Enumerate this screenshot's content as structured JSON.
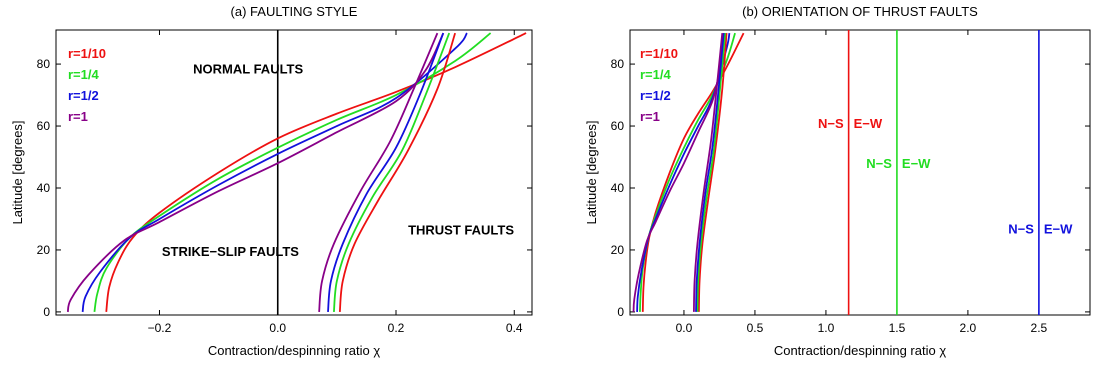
{
  "chart_data": [
    {
      "type": "line",
      "title": "(a) FAULTING STYLE",
      "xlabel": "Contraction/despinning ratio χ",
      "ylabel": "Latitude [degrees]",
      "xlim": [
        -0.375,
        0.43
      ],
      "ylim": [
        -1,
        91
      ],
      "xticks": [
        -0.2,
        0.0,
        0.2,
        0.4
      ],
      "xtick_labels": [
        "−0.2",
        "0.0",
        "0.2",
        "0.4"
      ],
      "yticks": [
        0,
        20,
        40,
        60,
        80
      ],
      "ytick_labels": [
        "0",
        "20",
        "40",
        "60",
        "80"
      ],
      "legend_position": "top-left",
      "legend": [
        {
          "label": "r=1/10",
          "color": "#ee1111"
        },
        {
          "label": "r=1/4",
          "color": "#22dd22"
        },
        {
          "label": "r=1/2",
          "color": "#1111dd"
        },
        {
          "label": "r=1",
          "color": "#880088"
        }
      ],
      "annotations": [
        {
          "text": "NORMAL FAULTS",
          "x": -0.05,
          "y": 77
        },
        {
          "text": "STRIKE−SLIP FAULTS",
          "x": -0.08,
          "y": 18
        },
        {
          "text": "THRUST FAULTS",
          "x": 0.31,
          "y": 25
        }
      ],
      "vertical_lines": [
        {
          "x": 0.0,
          "color": "#000000"
        }
      ],
      "series": [
        {
          "color": "#ee1111",
          "kind": "normal",
          "x": [
            -0.29,
            -0.285,
            -0.27,
            -0.245,
            -0.2,
            -0.1,
            0.0,
            0.1,
            0.2,
            0.3,
            0.42
          ],
          "y": [
            0,
            8,
            16,
            24,
            32,
            45,
            56,
            64,
            71,
            79,
            90
          ]
        },
        {
          "color": "#22dd22",
          "kind": "normal",
          "x": [
            -0.31,
            -0.305,
            -0.29,
            -0.25,
            -0.2,
            -0.1,
            0.0,
            0.1,
            0.2,
            0.3,
            0.36
          ],
          "y": [
            0,
            6,
            14,
            24,
            31,
            43,
            53,
            62,
            70,
            81,
            90
          ]
        },
        {
          "color": "#1111dd",
          "kind": "normal",
          "x": [
            -0.33,
            -0.325,
            -0.3,
            -0.25,
            -0.2,
            -0.1,
            0.0,
            0.1,
            0.2,
            0.3,
            0.32
          ],
          "y": [
            0,
            5,
            13,
            24,
            30,
            41,
            51,
            60,
            69,
            85,
            90
          ]
        },
        {
          "color": "#880088",
          "kind": "normal",
          "x": [
            -0.355,
            -0.35,
            -0.32,
            -0.26,
            -0.2,
            -0.1,
            0.0,
            0.1,
            0.2,
            0.25,
            0.28
          ],
          "y": [
            0,
            4,
            12,
            23,
            29,
            39,
            48,
            58,
            68,
            78,
            90
          ]
        },
        {
          "color": "#ee1111",
          "kind": "thrust",
          "x": [
            0.105,
            0.11,
            0.13,
            0.17,
            0.22,
            0.27,
            0.3
          ],
          "y": [
            0,
            10,
            22,
            36,
            52,
            72,
            90
          ]
        },
        {
          "color": "#22dd22",
          "kind": "thrust",
          "x": [
            0.095,
            0.1,
            0.12,
            0.16,
            0.21,
            0.25,
            0.29
          ],
          "y": [
            0,
            10,
            22,
            37,
            52,
            70,
            90
          ]
        },
        {
          "color": "#1111dd",
          "kind": "thrust",
          "x": [
            0.085,
            0.09,
            0.11,
            0.15,
            0.2,
            0.24,
            0.28
          ],
          "y": [
            0,
            10,
            22,
            38,
            53,
            70,
            90
          ]
        },
        {
          "color": "#880088",
          "kind": "thrust",
          "x": [
            0.07,
            0.075,
            0.095,
            0.14,
            0.19,
            0.23,
            0.27
          ],
          "y": [
            0,
            10,
            22,
            39,
            55,
            72,
            90
          ]
        }
      ]
    },
    {
      "type": "line",
      "title": "(b) ORIENTATION OF THRUST FAULTS",
      "xlabel": "Contraction/despinning ratio χ",
      "ylabel": "Latitude [degrees]",
      "xlim": [
        -0.38,
        2.86
      ],
      "ylim": [
        -1,
        91
      ],
      "xticks": [
        0.0,
        0.5,
        1.0,
        1.5,
        2.0,
        2.5
      ],
      "xtick_labels": [
        "0.0",
        "0.5",
        "1.0",
        "1.5",
        "2.0",
        "2.5"
      ],
      "yticks": [
        0,
        20,
        40,
        60,
        80
      ],
      "ytick_labels": [
        "0",
        "20",
        "40",
        "60",
        "80"
      ],
      "legend_position": "top-left",
      "legend": [
        {
          "label": "r=1/10",
          "color": "#ee1111"
        },
        {
          "label": "r=1/4",
          "color": "#22dd22"
        },
        {
          "label": "r=1/2",
          "color": "#1111dd"
        },
        {
          "label": "r=1",
          "color": "#880088"
        }
      ],
      "vertical_lines": [
        {
          "x": 1.16,
          "color": "#ee1111",
          "left_label": "N−S",
          "right_label": "E−W",
          "label_y": 61
        },
        {
          "x": 1.5,
          "color": "#22dd22",
          "left_label": "N−S",
          "right_label": "E−W",
          "label_y": 48
        },
        {
          "x": 2.5,
          "color": "#1111dd",
          "left_label": "N−S",
          "right_label": "E−W",
          "label_y": 27
        }
      ],
      "series": [
        {
          "color": "#ee1111",
          "kind": "normal",
          "x": [
            -0.29,
            -0.285,
            -0.27,
            -0.245,
            -0.2,
            -0.1,
            0.0,
            0.1,
            0.2,
            0.3,
            0.42
          ],
          "y": [
            0,
            8,
            16,
            24,
            32,
            45,
            56,
            64,
            71,
            79,
            90
          ]
        },
        {
          "color": "#22dd22",
          "kind": "normal",
          "x": [
            -0.31,
            -0.305,
            -0.29,
            -0.25,
            -0.2,
            -0.1,
            0.0,
            0.1,
            0.2,
            0.3,
            0.36
          ],
          "y": [
            0,
            6,
            14,
            24,
            31,
            43,
            53,
            62,
            70,
            81,
            90
          ]
        },
        {
          "color": "#1111dd",
          "kind": "normal",
          "x": [
            -0.33,
            -0.325,
            -0.3,
            -0.25,
            -0.2,
            -0.1,
            0.0,
            0.1,
            0.2,
            0.3,
            0.32
          ],
          "y": [
            0,
            5,
            13,
            24,
            30,
            41,
            51,
            60,
            69,
            85,
            90
          ]
        },
        {
          "color": "#880088",
          "kind": "normal",
          "x": [
            -0.355,
            -0.35,
            -0.32,
            -0.26,
            -0.2,
            -0.1,
            0.0,
            0.1,
            0.2,
            0.25,
            0.28
          ],
          "y": [
            0,
            4,
            12,
            23,
            29,
            39,
            48,
            58,
            68,
            78,
            90
          ]
        },
        {
          "color": "#ee1111",
          "kind": "thrust",
          "x": [
            0.105,
            0.11,
            0.13,
            0.17,
            0.22,
            0.27,
            0.3
          ],
          "y": [
            0,
            10,
            22,
            36,
            52,
            72,
            90
          ]
        },
        {
          "color": "#22dd22",
          "kind": "thrust",
          "x": [
            0.095,
            0.1,
            0.12,
            0.16,
            0.21,
            0.25,
            0.29
          ],
          "y": [
            0,
            10,
            22,
            37,
            52,
            70,
            90
          ]
        },
        {
          "color": "#1111dd",
          "kind": "thrust",
          "x": [
            0.085,
            0.09,
            0.11,
            0.15,
            0.2,
            0.24,
            0.28
          ],
          "y": [
            0,
            10,
            22,
            38,
            53,
            70,
            90
          ]
        },
        {
          "color": "#880088",
          "kind": "thrust",
          "x": [
            0.07,
            0.075,
            0.095,
            0.14,
            0.19,
            0.23,
            0.27
          ],
          "y": [
            0,
            10,
            22,
            39,
            55,
            72,
            90
          ]
        }
      ]
    }
  ]
}
